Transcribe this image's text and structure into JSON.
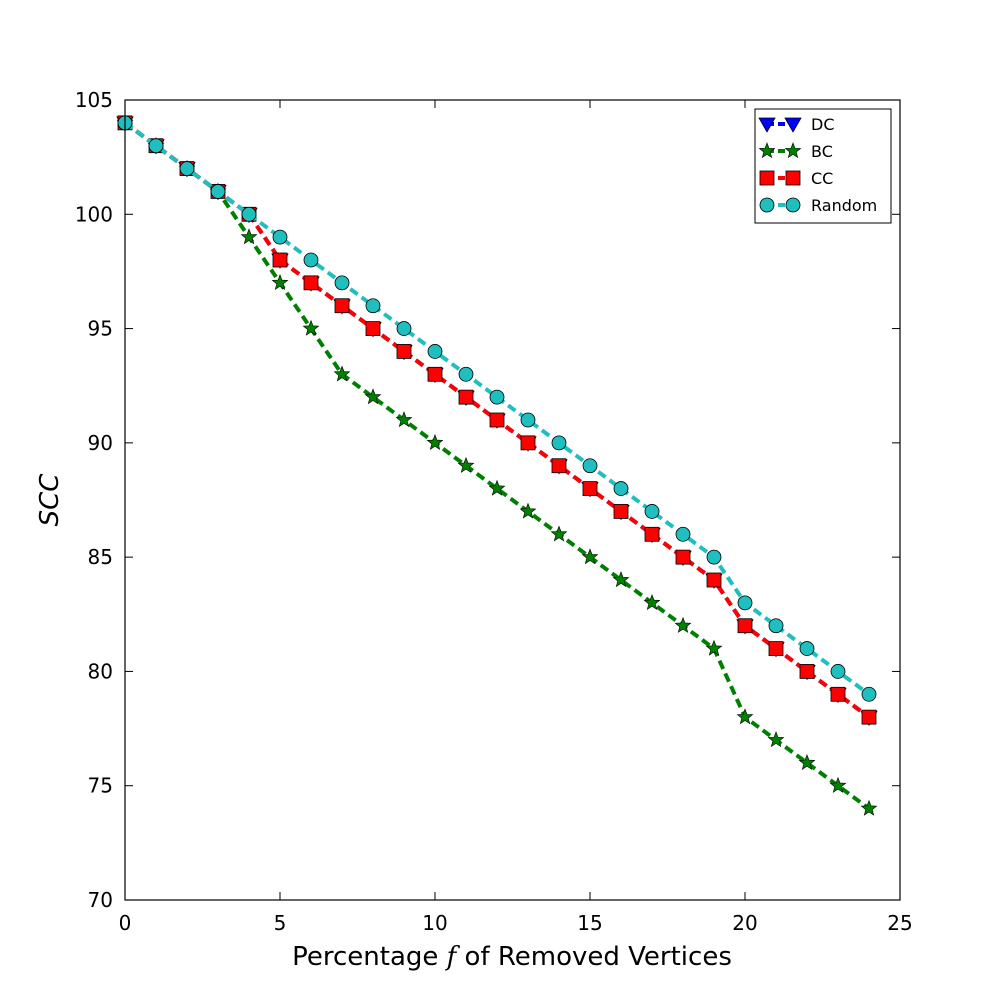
{
  "chart_data": {
    "type": "line",
    "xlabel_prefix": "Percentage",
    "xlabel_symbol": "f",
    "xlabel_suffix": "of Removed Vertices",
    "ylabel": "SCC",
    "xlim": [
      0,
      25
    ],
    "ylim": [
      70,
      105
    ],
    "xticks": [
      0,
      5,
      10,
      15,
      20,
      25
    ],
    "yticks": [
      70,
      75,
      80,
      85,
      90,
      95,
      100,
      105
    ],
    "grid": false,
    "legend_position": "top-right",
    "x": [
      0,
      1,
      2,
      3,
      4,
      5,
      6,
      7,
      8,
      9,
      10,
      11,
      12,
      13,
      14,
      15,
      16,
      17,
      18,
      19,
      20,
      21,
      22,
      23,
      24
    ],
    "series": [
      {
        "name": "DC",
        "color": "#0000ff",
        "marker": "triangle-down",
        "values": [
          104,
          103,
          102,
          101,
          100,
          98,
          97,
          96,
          95,
          94,
          93,
          92,
          91,
          90,
          89,
          88,
          87,
          86,
          85,
          84,
          82,
          81,
          80,
          79,
          78
        ]
      },
      {
        "name": "BC",
        "color": "#008000",
        "marker": "star",
        "values": [
          104,
          103,
          102,
          101,
          99,
          97,
          95,
          93,
          92,
          91,
          90,
          89,
          88,
          87,
          86,
          85,
          84,
          83,
          82,
          81,
          78,
          77,
          76,
          75,
          74
        ]
      },
      {
        "name": "CC",
        "color": "#ff0000",
        "marker": "square",
        "values": [
          104,
          103,
          102,
          101,
          100,
          98,
          97,
          96,
          95,
          94,
          93,
          92,
          91,
          90,
          89,
          88,
          87,
          86,
          85,
          84,
          82,
          81,
          80,
          79,
          78
        ]
      },
      {
        "name": "Random",
        "color": "#1fbfbf",
        "marker": "circle",
        "values": [
          104,
          103,
          102,
          101,
          100,
          99,
          98,
          97,
          96,
          95,
          94,
          93,
          92,
          91,
          90,
          89,
          88,
          87,
          86,
          85,
          83,
          82,
          81,
          80,
          79
        ]
      }
    ]
  }
}
